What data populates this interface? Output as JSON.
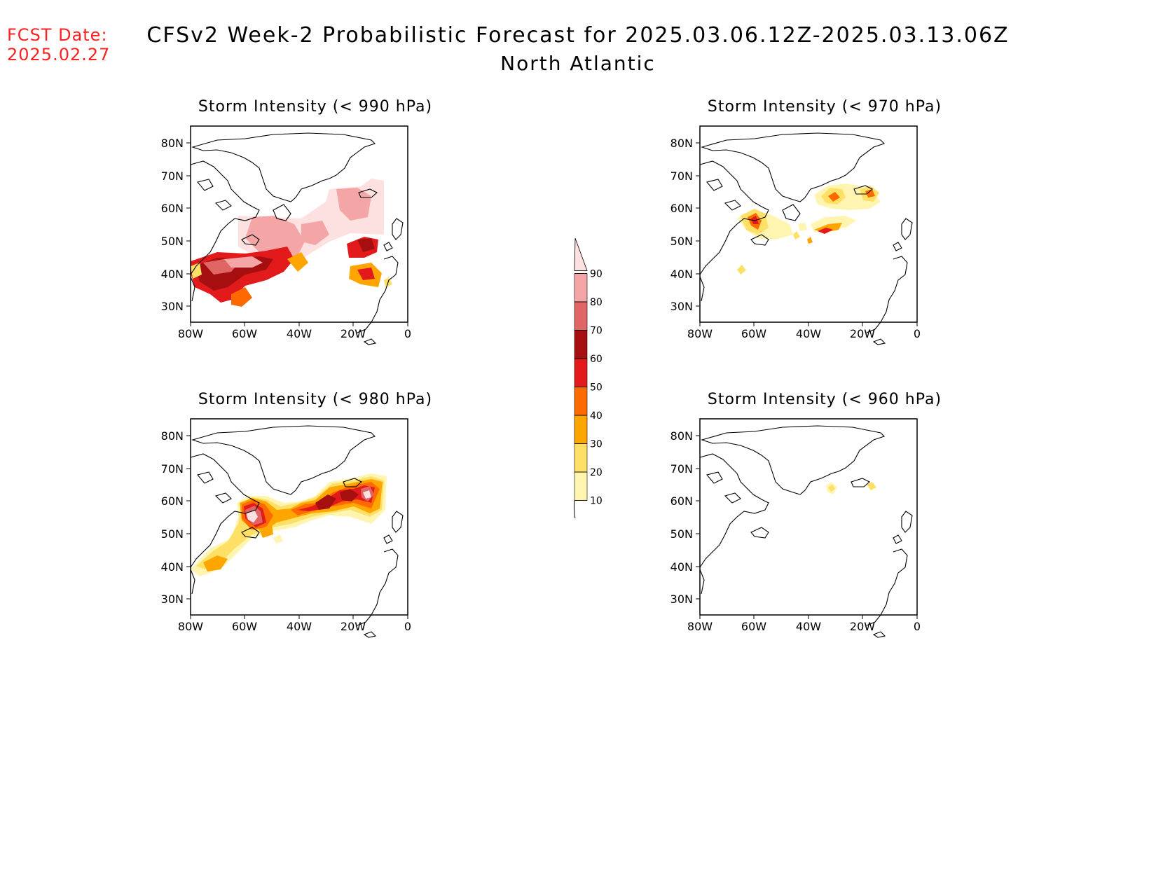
{
  "header": {
    "fcst_label": "FCST Date:",
    "fcst_date": "2025.02.27",
    "title": "CFSv2 Week-2 Probabilistic Forecast for 2025.03.06.12Z-2025.03.13.06Z",
    "subtitle": "North Atlantic"
  },
  "axes": {
    "lat_labels": [
      "80N",
      "70N",
      "60N",
      "50N",
      "40N",
      "30N"
    ],
    "lon_labels": [
      "80W",
      "60W",
      "40W",
      "20W",
      "0"
    ]
  },
  "panels": [
    {
      "title": "Storm Intensity (< 990 hPa)"
    },
    {
      "title": "Storm Intensity (< 970 hPa)"
    },
    {
      "title": "Storm Intensity (< 980 hPa)"
    },
    {
      "title": "Storm Intensity (< 960 hPa)"
    }
  ],
  "colorbar": {
    "labels": [
      "90",
      "80",
      "70",
      "60",
      "50",
      "40",
      "30",
      "20",
      "10"
    ],
    "colors": [
      "#fde0e0",
      "#f4a6a6",
      "#e06666",
      "#a50f0f",
      "#e31a1c",
      "#ff6a00",
      "#ffa500",
      "#ffe066",
      "#fff5b0"
    ]
  }
}
